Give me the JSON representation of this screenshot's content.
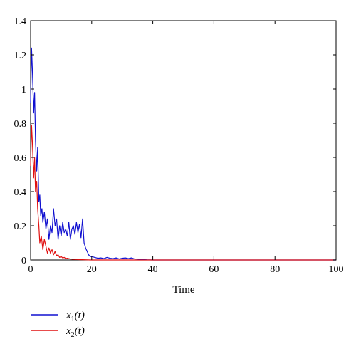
{
  "chart_data": {
    "type": "line",
    "xlabel": "Time",
    "ylabel": "",
    "xlim": [
      0,
      100
    ],
    "ylim": [
      0,
      1.4
    ],
    "xticks": [
      "0",
      "20",
      "40",
      "60",
      "80",
      "100"
    ],
    "yticks": [
      "0",
      "0.2",
      "0.4",
      "0.6",
      "0.8",
      "1",
      "1.2",
      "1.4"
    ],
    "grid": false,
    "legend_position": "bottom-left, below plot",
    "series": [
      {
        "name": "x1(t)",
        "name_main": "x",
        "name_sub": "1",
        "name_tail": "(t)",
        "color": "#1010d0",
        "x": [
          0,
          0.3,
          0.6,
          1.0,
          1.3,
          1.6,
          2.0,
          2.3,
          2.7,
          3.0,
          3.3,
          3.7,
          4.0,
          4.5,
          5.0,
          5.5,
          6.0,
          6.5,
          7.0,
          7.5,
          8.0,
          8.5,
          9.0,
          9.5,
          10.0,
          10.5,
          11.0,
          11.5,
          12.0,
          12.5,
          13.0,
          13.5,
          14.0,
          14.5,
          15.0,
          15.5,
          16.0,
          16.5,
          17.0,
          17.5,
          18.0,
          18.5,
          19.0,
          19.5,
          20.0,
          21.0,
          22.0,
          23.0,
          24.0,
          25.0,
          26.0,
          27.0,
          28.0,
          29.0,
          30.0,
          31.0,
          32.0,
          33.0,
          34.0,
          35.0,
          36.0,
          37.0,
          38.0,
          40.0,
          50.0,
          60.0,
          70.0,
          80.0,
          90.0,
          100.0
        ],
        "y": [
          0.92,
          1.24,
          1.1,
          0.86,
          0.98,
          0.7,
          0.52,
          0.66,
          0.34,
          0.38,
          0.26,
          0.3,
          0.22,
          0.28,
          0.18,
          0.24,
          0.12,
          0.2,
          0.16,
          0.3,
          0.2,
          0.24,
          0.12,
          0.2,
          0.14,
          0.22,
          0.16,
          0.18,
          0.14,
          0.22,
          0.12,
          0.18,
          0.2,
          0.15,
          0.22,
          0.16,
          0.21,
          0.13,
          0.24,
          0.1,
          0.07,
          0.05,
          0.03,
          0.02,
          0.02,
          0.015,
          0.01,
          0.012,
          0.008,
          0.015,
          0.01,
          0.008,
          0.012,
          0.006,
          0.01,
          0.012,
          0.008,
          0.012,
          0.006,
          0.005,
          0.003,
          0.002,
          0.001,
          0.0,
          0.0,
          0.0,
          0.0,
          0.0,
          0.0,
          0.0
        ]
      },
      {
        "name": "x2(t)",
        "name_main": "x",
        "name_sub": "2",
        "name_tail": "(t)",
        "color": "#e01010",
        "x": [
          0,
          0.3,
          0.6,
          1.0,
          1.3,
          1.6,
          2.0,
          2.3,
          2.7,
          3.0,
          3.5,
          4.0,
          4.5,
          5.0,
          5.5,
          6.0,
          6.5,
          7.0,
          7.5,
          8.0,
          8.5,
          9.0,
          9.5,
          10.0,
          10.5,
          11.0,
          11.5,
          12.0,
          13.0,
          14.0,
          15.0,
          16.0,
          18.0,
          20.0,
          25.0,
          30.0,
          40.0,
          60.0,
          80.0,
          100.0
        ],
        "y": [
          0.55,
          0.79,
          0.68,
          0.48,
          0.6,
          0.4,
          0.46,
          0.3,
          0.2,
          0.1,
          0.14,
          0.06,
          0.12,
          0.08,
          0.04,
          0.07,
          0.04,
          0.06,
          0.03,
          0.05,
          0.025,
          0.03,
          0.015,
          0.02,
          0.012,
          0.015,
          0.008,
          0.01,
          0.006,
          0.004,
          0.003,
          0.002,
          0.001,
          0.0,
          0.0,
          0.0,
          0.0,
          0.0,
          0.0,
          0.0
        ]
      }
    ]
  }
}
